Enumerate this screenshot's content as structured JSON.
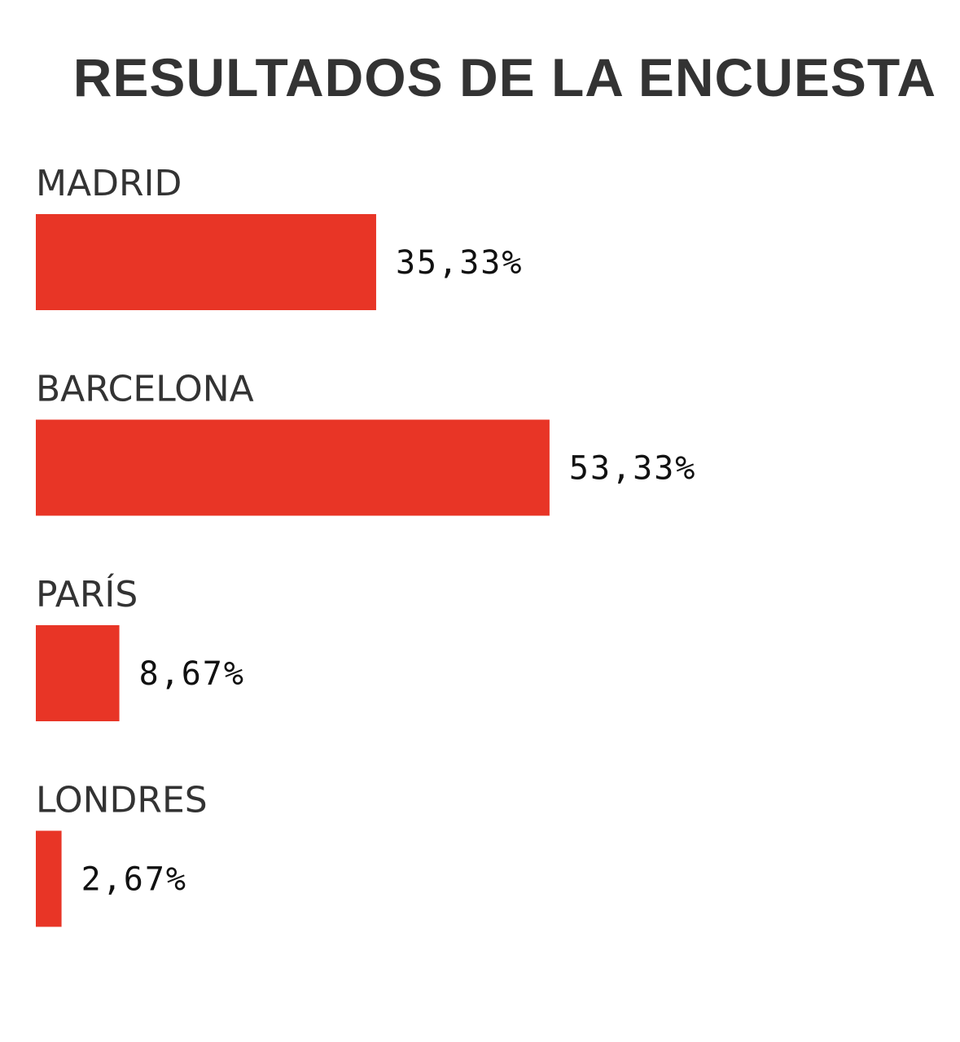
{
  "chart_data": {
    "type": "bar",
    "orientation": "horizontal",
    "title": "RESULTADOS DE LA ENCUESTA",
    "categories": [
      "MADRID",
      "BARCELONA",
      "PARÍS",
      "LONDRES"
    ],
    "values": [
      35.33,
      53.33,
      8.67,
      2.67
    ],
    "value_labels": [
      "35,33%",
      "53,33%",
      "8,67%",
      "2,67%"
    ],
    "unit": "%",
    "xlim": [
      0,
      100
    ],
    "grid": false,
    "legend": "none",
    "bar_color": "#E83526"
  },
  "colors": {
    "title": "#333333",
    "category_label": "#333333",
    "value_label": "#111111",
    "background": "#FFFFFF"
  }
}
